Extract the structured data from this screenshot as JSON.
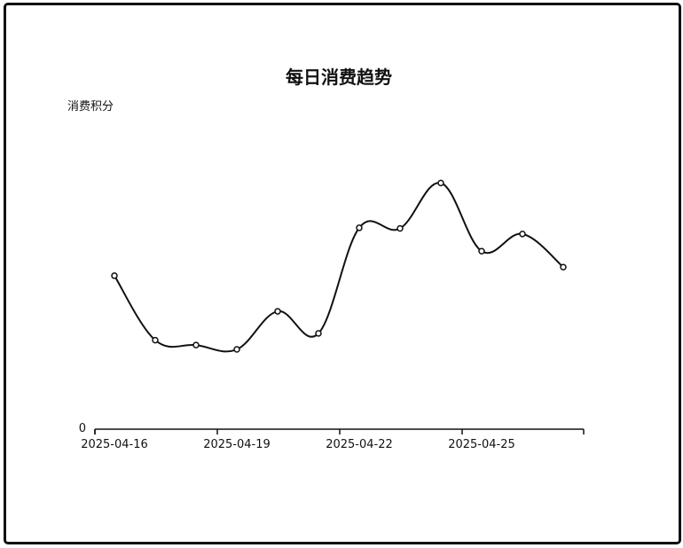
{
  "chart_data": {
    "type": "line",
    "title": "每日消费趋势",
    "xlabel": "",
    "ylabel": "消费积分",
    "y_tick_labels": [
      "0"
    ],
    "x_tick_labels": [
      "2025-04-16",
      "2025-04-19",
      "2025-04-22",
      "2025-04-25"
    ],
    "x": [
      "2025-04-16",
      "2025-04-17",
      "2025-04-18",
      "2025-04-19",
      "2025-04-20",
      "2025-04-21",
      "2025-04-22",
      "2025-04-23",
      "2025-04-24",
      "2025-04-25",
      "2025-04-26",
      "2025-04-27"
    ],
    "values": [
      250,
      145,
      137,
      130,
      192,
      156,
      328,
      327,
      401,
      290,
      318,
      264
    ],
    "ylim": [
      0,
      520
    ],
    "smooth": true,
    "show_points": true,
    "grid": false,
    "line_color": "#111111",
    "point_fill": "#ffffff"
  }
}
